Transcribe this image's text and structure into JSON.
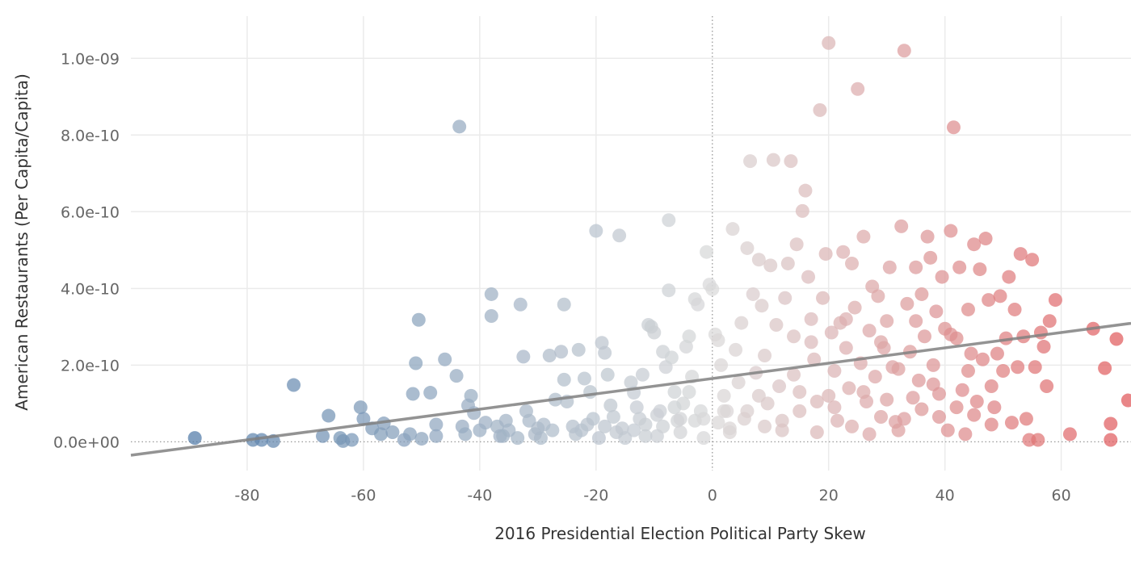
{
  "chart_data": {
    "type": "scatter",
    "title": "",
    "xlabel": "2016 Presidential Election Political Party Skew",
    "ylabel": "American Restaurants (Per Capita/Capita)",
    "xlim": [
      -100,
      72
    ],
    "ylim": [
      -7.5e-11,
      1.11e-09
    ],
    "x_ticks": [
      -80,
      -60,
      -40,
      -20,
      0,
      20,
      40,
      60
    ],
    "x_tick_labels": [
      "-80",
      "-60",
      "-40",
      "-20",
      "0",
      "20",
      "40",
      "60"
    ],
    "y_ticks": [
      0,
      2e-10,
      4e-10,
      6e-10,
      8e-10,
      1e-09
    ],
    "y_tick_labels": [
      "0.0e+00",
      "2.0e-10",
      "4.0e-10",
      "6.0e-10",
      "8.0e-10",
      "1.0e-09"
    ],
    "grid": true,
    "reference_line_x": 0,
    "reference_line_y": 0,
    "color_scale": {
      "type": "diverging",
      "min": -90,
      "mid": 0,
      "max": 72,
      "low_color": "#4e79a7",
      "mid_color": "#d9d9d9",
      "high_color": "#e15759"
    },
    "trend_line": {
      "slope": 2e-12,
      "intercept": 1.65e-10,
      "color": "#808080"
    },
    "points": [
      [
        -89,
        1e-11
      ],
      [
        -79,
        5e-12
      ],
      [
        -77.5,
        5e-12
      ],
      [
        -75.5,
        2e-12
      ],
      [
        -72,
        1.48e-10
      ],
      [
        -67,
        1.5e-11
      ],
      [
        -66,
        6.8e-11
      ],
      [
        -64,
        1e-11
      ],
      [
        -63.5,
        2e-12
      ],
      [
        -62,
        5e-12
      ],
      [
        -60.5,
        9e-11
      ],
      [
        -60,
        6e-11
      ],
      [
        -58.5,
        3.5e-11
      ],
      [
        -57,
        2e-11
      ],
      [
        -56.5,
        4.8e-11
      ],
      [
        -55,
        2.5e-11
      ],
      [
        -53,
        5e-12
      ],
      [
        -52,
        2e-11
      ],
      [
        -51.5,
        1.25e-10
      ],
      [
        -51,
        2.05e-10
      ],
      [
        -50.5,
        3.18e-10
      ],
      [
        -50,
        8e-12
      ],
      [
        -48.5,
        1.28e-10
      ],
      [
        -47.5,
        4.5e-11
      ],
      [
        -47.5,
        1.5e-11
      ],
      [
        -46,
        2.15e-10
      ],
      [
        -44,
        1.72e-10
      ],
      [
        -43.5,
        8.22e-10
      ],
      [
        -43,
        4e-11
      ],
      [
        -42.5,
        2e-11
      ],
      [
        -42,
        9.5e-11
      ],
      [
        -41.5,
        1.2e-10
      ],
      [
        -41,
        7.5e-11
      ],
      [
        -40,
        3e-11
      ],
      [
        -39,
        5e-11
      ],
      [
        -38,
        3.85e-10
      ],
      [
        -38,
        3.28e-10
      ],
      [
        -37,
        4e-11
      ],
      [
        -36.5,
        1.5e-11
      ],
      [
        -35.5,
        5.5e-11
      ],
      [
        -35,
        3e-11
      ],
      [
        -33,
        3.58e-10
      ],
      [
        -32.5,
        2.22e-10
      ],
      [
        -32,
        8e-11
      ],
      [
        -31.5,
        5.5e-11
      ],
      [
        -30,
        3.5e-11
      ],
      [
        -29.5,
        1e-11
      ],
      [
        -29,
        4.5e-11
      ],
      [
        -28,
        2.25e-10
      ],
      [
        -27,
        1.1e-10
      ],
      [
        -26,
        2.35e-10
      ],
      [
        -25.5,
        3.58e-10
      ],
      [
        -25.5,
        1.62e-10
      ],
      [
        -25,
        1.05e-10
      ],
      [
        -24,
        4e-11
      ],
      [
        -23.5,
        2e-11
      ],
      [
        -23,
        2.4e-10
      ],
      [
        -22,
        1.65e-10
      ],
      [
        -21,
        1.3e-10
      ],
      [
        -20.5,
        6e-11
      ],
      [
        -20,
        5.5e-10
      ],
      [
        -19.5,
        1e-11
      ],
      [
        -19,
        2.58e-10
      ],
      [
        -18.5,
        2.32e-10
      ],
      [
        -18,
        1.75e-10
      ],
      [
        -17.5,
        9.5e-11
      ],
      [
        -17,
        6.5e-11
      ],
      [
        -16,
        5.38e-10
      ],
      [
        -15.5,
        3.5e-11
      ],
      [
        -15,
        1e-11
      ],
      [
        -14,
        1.55e-10
      ],
      [
        -13.5,
        1.28e-10
      ],
      [
        -13,
        9e-11
      ],
      [
        -12.5,
        6e-11
      ],
      [
        -12,
        1.75e-10
      ],
      [
        -11.5,
        4.5e-11
      ],
      [
        -11,
        3.05e-10
      ],
      [
        -10.5,
        3e-10
      ],
      [
        -10,
        2.85e-10
      ],
      [
        -9.5,
        1.5e-11
      ],
      [
        -9,
        8e-11
      ],
      [
        -8.5,
        2.35e-10
      ],
      [
        -8,
        1.95e-10
      ],
      [
        -7.5,
        5.78e-10
      ],
      [
        -7.5,
        3.95e-10
      ],
      [
        -7,
        2.2e-10
      ],
      [
        -6.5,
        1.3e-10
      ],
      [
        -6,
        5.5e-11
      ],
      [
        -5.5,
        2.5e-11
      ],
      [
        -5,
        1e-10
      ],
      [
        -4.5,
        2.48e-10
      ],
      [
        -4,
        2.75e-10
      ],
      [
        -3.5,
        1.7e-10
      ],
      [
        -3,
        3.72e-10
      ],
      [
        -2.5,
        3.58e-10
      ],
      [
        -2,
        8e-11
      ],
      [
        -1.5,
        1e-11
      ],
      [
        -1,
        4.95e-10
      ],
      [
        -0.5,
        4.1e-10
      ],
      [
        0,
        3.98e-10
      ],
      [
        0.5,
        2.8e-10
      ],
      [
        1,
        2.65e-10
      ],
      [
        1.5,
        2e-10
      ],
      [
        2,
        1.2e-10
      ],
      [
        2.5,
        8e-11
      ],
      [
        3,
        3.5e-11
      ],
      [
        3.5,
        5.55e-10
      ],
      [
        4,
        2.4e-10
      ],
      [
        4.5,
        1.55e-10
      ],
      [
        5,
        3.1e-10
      ],
      [
        5.5,
        6e-11
      ],
      [
        6,
        5.05e-10
      ],
      [
        6.5,
        7.32e-10
      ],
      [
        7,
        3.85e-10
      ],
      [
        7.5,
        1.8e-10
      ],
      [
        8,
        4.75e-10
      ],
      [
        8.5,
        3.55e-10
      ],
      [
        9,
        2.25e-10
      ],
      [
        9.5,
        1e-10
      ],
      [
        10,
        4.6e-10
      ],
      [
        10.5,
        7.35e-10
      ],
      [
        11,
        3.05e-10
      ],
      [
        11.5,
        1.45e-10
      ],
      [
        12,
        5.5e-11
      ],
      [
        12.5,
        3.75e-10
      ],
      [
        13,
        4.65e-10
      ],
      [
        13.5,
        7.32e-10
      ],
      [
        14,
        2.75e-10
      ],
      [
        14.5,
        5.15e-10
      ],
      [
        15,
        1.3e-10
      ],
      [
        15.5,
        6.02e-10
      ],
      [
        16,
        6.55e-10
      ],
      [
        16.5,
        4.3e-10
      ],
      [
        17,
        3.2e-10
      ],
      [
        17.5,
        2.15e-10
      ],
      [
        18,
        1.05e-10
      ],
      [
        18.5,
        8.65e-10
      ],
      [
        19,
        3.75e-10
      ],
      [
        19.5,
        4.9e-10
      ],
      [
        20,
        1.04e-09
      ],
      [
        20.5,
        2.85e-10
      ],
      [
        21,
        1.85e-10
      ],
      [
        21.5,
        5.5e-11
      ],
      [
        22,
        3.1e-10
      ],
      [
        22.5,
        4.95e-10
      ],
      [
        23,
        2.45e-10
      ],
      [
        23.5,
        1.4e-10
      ],
      [
        24,
        4.65e-10
      ],
      [
        24.5,
        3.5e-10
      ],
      [
        25,
        9.2e-10
      ],
      [
        25.5,
        2.05e-10
      ],
      [
        26,
        5.35e-10
      ],
      [
        26.5,
        1.05e-10
      ],
      [
        27,
        2.9e-10
      ],
      [
        27.5,
        4.05e-10
      ],
      [
        28,
        1.7e-10
      ],
      [
        28.5,
        3.8e-10
      ],
      [
        29,
        6.5e-11
      ],
      [
        29.5,
        2.45e-10
      ],
      [
        30,
        3.15e-10
      ],
      [
        30.5,
        4.55e-10
      ],
      [
        31,
        1.95e-10
      ],
      [
        31.5,
        5.2e-11
      ],
      [
        32,
        3e-11
      ],
      [
        32.5,
        5.62e-10
      ],
      [
        33,
        1.02e-09
      ],
      [
        33.5,
        3.6e-10
      ],
      [
        34,
        2.35e-10
      ],
      [
        34.5,
        1.15e-10
      ],
      [
        35,
        4.55e-10
      ],
      [
        35.5,
        1.6e-10
      ],
      [
        36,
        3.85e-10
      ],
      [
        36.5,
        2.75e-10
      ],
      [
        37,
        5.35e-10
      ],
      [
        37.5,
        4.8e-10
      ],
      [
        38,
        2e-10
      ],
      [
        38.5,
        3.4e-10
      ],
      [
        39,
        1.25e-10
      ],
      [
        39.5,
        4.3e-10
      ],
      [
        40,
        2.95e-10
      ],
      [
        40.5,
        3e-11
      ],
      [
        41,
        5.5e-10
      ],
      [
        41.5,
        8.2e-10
      ],
      [
        42,
        2.7e-10
      ],
      [
        42.5,
        4.55e-10
      ],
      [
        43,
        1.35e-10
      ],
      [
        43.5,
        2e-11
      ],
      [
        44,
        3.45e-10
      ],
      [
        44.5,
        2.3e-10
      ],
      [
        45,
        5.15e-10
      ],
      [
        45.5,
        1.05e-10
      ],
      [
        46,
        4.5e-10
      ],
      [
        46.5,
        2.15e-10
      ],
      [
        47,
        5.3e-10
      ],
      [
        47.5,
        3.7e-10
      ],
      [
        48,
        1.45e-10
      ],
      [
        48.5,
        9e-11
      ],
      [
        49,
        2.3e-10
      ],
      [
        49.5,
        3.8e-10
      ],
      [
        50,
        1.85e-10
      ],
      [
        50.5,
        2.7e-10
      ],
      [
        51,
        4.3e-10
      ],
      [
        51.5,
        5e-11
      ],
      [
        52,
        3.45e-10
      ],
      [
        52.5,
        1.95e-10
      ],
      [
        53,
        4.9e-10
      ],
      [
        53.5,
        2.75e-10
      ],
      [
        54,
        6e-11
      ],
      [
        54.5,
        5e-12
      ],
      [
        55,
        4.75e-10
      ],
      [
        55.5,
        1.95e-10
      ],
      [
        56,
        5e-12
      ],
      [
        56.5,
        2.85e-10
      ],
      [
        57,
        2.48e-10
      ],
      [
        57.5,
        1.45e-10
      ],
      [
        58,
        3.15e-10
      ],
      [
        59,
        3.7e-10
      ],
      [
        61.5,
        2e-11
      ],
      [
        65.5,
        2.95e-10
      ],
      [
        67.5,
        1.92e-10
      ],
      [
        68.5,
        4.7e-11
      ],
      [
        68.5,
        5e-12
      ],
      [
        69.5,
        2.68e-10
      ],
      [
        71.5,
        1.08e-10
      ],
      [
        3,
        2.5e-11
      ],
      [
        6,
        8e-11
      ],
      [
        9,
        4e-11
      ],
      [
        12,
        3e-11
      ],
      [
        15,
        8e-11
      ],
      [
        18,
        2.5e-11
      ],
      [
        21,
        9e-11
      ],
      [
        24,
        4e-11
      ],
      [
        27,
        2e-11
      ],
      [
        30,
        1.1e-10
      ],
      [
        33,
        6e-11
      ],
      [
        36,
        8.5e-11
      ],
      [
        39,
        6.5e-11
      ],
      [
        42,
        9e-11
      ],
      [
        45,
        7e-11
      ],
      [
        48,
        4.5e-11
      ],
      [
        8,
        1.2e-10
      ],
      [
        14,
        1.75e-10
      ],
      [
        20,
        1.2e-10
      ],
      [
        26,
        1.3e-10
      ],
      [
        32,
        1.9e-10
      ],
      [
        38,
        1.5e-10
      ],
      [
        44,
        1.85e-10
      ],
      [
        17,
        2.6e-10
      ],
      [
        23,
        3.2e-10
      ],
      [
        29,
        2.6e-10
      ],
      [
        35,
        3.15e-10
      ],
      [
        41,
        2.8e-10
      ],
      [
        -36,
        1.5e-11
      ],
      [
        -33.5,
        1e-11
      ],
      [
        -30.5,
        2e-11
      ],
      [
        -27.5,
        3e-11
      ],
      [
        -22.5,
        3e-11
      ],
      [
        -21.5,
        4.5e-11
      ],
      [
        -18.5,
        4e-11
      ],
      [
        -16.5,
        2.5e-11
      ],
      [
        -13.5,
        3e-11
      ],
      [
        -11.5,
        1.5e-11
      ],
      [
        -9.5,
        7e-11
      ],
      [
        -8.5,
        4e-11
      ],
      [
        -6.5,
        9e-11
      ],
      [
        -5.5,
        6e-11
      ],
      [
        -4,
        1.3e-10
      ],
      [
        -3,
        5.5e-11
      ],
      [
        -1.5,
        6e-11
      ],
      [
        1,
        5e-11
      ],
      [
        2,
        8e-11
      ]
    ]
  }
}
